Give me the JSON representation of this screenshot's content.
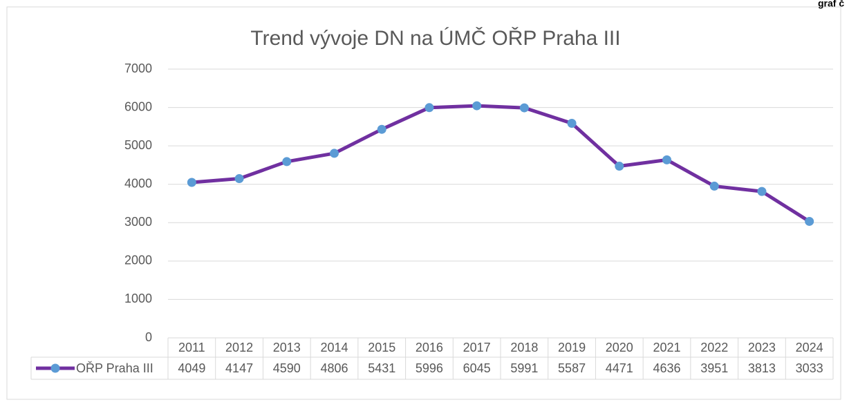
{
  "chart_data": {
    "type": "line",
    "title": "Trend vývoje DN na ÚMČ OŘP Praha III",
    "annotation": "graf č",
    "categories": [
      "2011",
      "2012",
      "2013",
      "2014",
      "2015",
      "2016",
      "2017",
      "2018",
      "2019",
      "2020",
      "2021",
      "2022",
      "2023",
      "2024"
    ],
    "series": [
      {
        "name": "OŘP Praha III",
        "color": "#7030a0",
        "marker_color": "#5b9bd5",
        "values": [
          4049,
          4147,
          4590,
          4806,
          5431,
          5996,
          6045,
          5991,
          5587,
          4471,
          4636,
          3951,
          3813,
          3033
        ]
      }
    ],
    "ylim": [
      0,
      7000
    ],
    "yticks": [
      0,
      1000,
      2000,
      3000,
      4000,
      5000,
      6000,
      7000
    ],
    "grid": true,
    "data_table": true
  }
}
